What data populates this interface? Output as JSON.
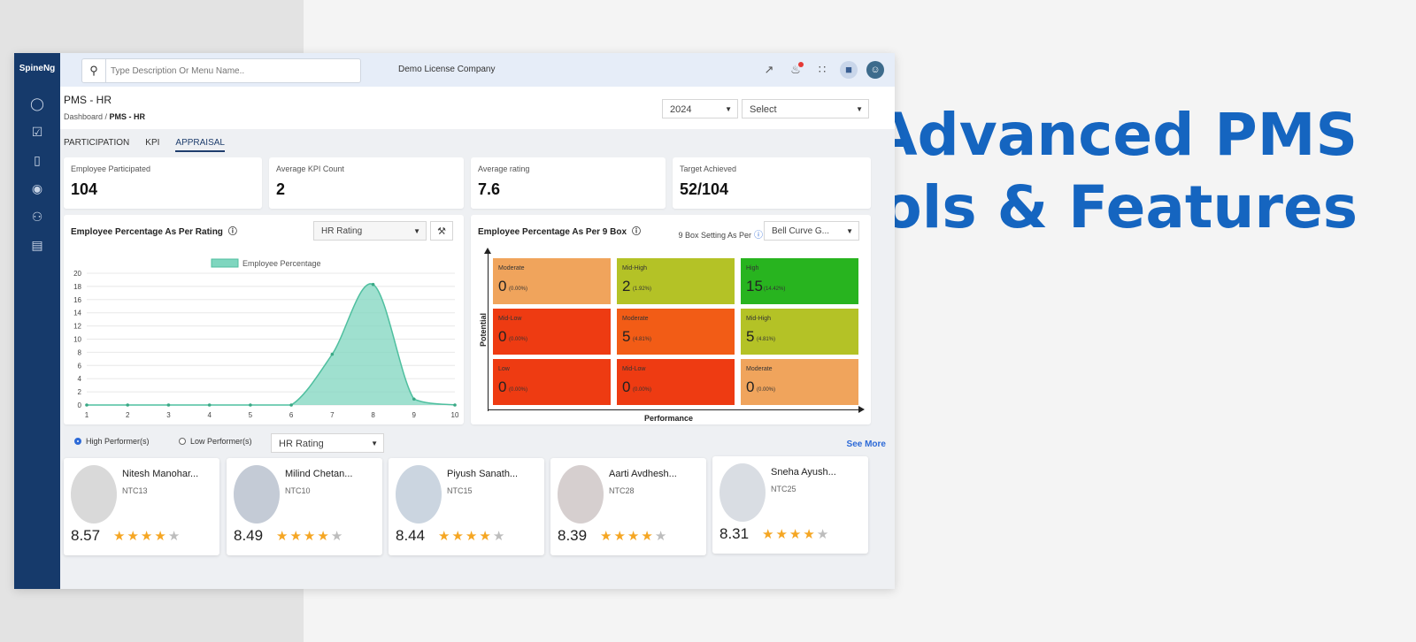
{
  "hero": {
    "line1": "Advanced PMS",
    "line2": "Tools & Features"
  },
  "app": {
    "brand": "SpineNg"
  },
  "topbar": {
    "search_placeholder": "Type Description Or Menu Name..",
    "company": "Demo License Company"
  },
  "page": {
    "title": "PMS - HR",
    "breadcrumb_root": "Dashboard /",
    "breadcrumb_current": "PMS - HR",
    "year_value": "2024",
    "select_value": "Select"
  },
  "tabs": [
    "PARTICIPATION",
    "KPI",
    "APPRAISAL"
  ],
  "stats": [
    {
      "label": "Employee Participated",
      "value": "104"
    },
    {
      "label": "Average KPI Count",
      "value": "2"
    },
    {
      "label": "Average rating",
      "value": "7.6"
    },
    {
      "label": "Target Achieved",
      "value": "52/104"
    }
  ],
  "rating_panel": {
    "title": "Employee Percentage As Per Rating",
    "dropdown": "HR Rating"
  },
  "chart_data": {
    "type": "area",
    "legend": [
      "Employee Percentage"
    ],
    "x": [
      1,
      2,
      3,
      4,
      5,
      6,
      7,
      8,
      9,
      10
    ],
    "series": [
      {
        "name": "Employee Percentage",
        "values": [
          0,
          0,
          0,
          0,
          0,
          0,
          7.7,
          18.3,
          0.9,
          0
        ]
      }
    ],
    "ylim": [
      0,
      20
    ],
    "yticks": [
      0,
      2,
      4,
      6,
      8,
      10,
      12,
      14,
      16,
      18,
      20
    ],
    "xticks": [
      1,
      2,
      3,
      4,
      5,
      6,
      7,
      8,
      9,
      10
    ],
    "grid": true,
    "legend_position": "top-center",
    "color": "#7fd6bf"
  },
  "nine_box": {
    "title": "Employee Percentage As Per 9 Box",
    "setting_label": "9 Box Setting As Per",
    "setting_value": "Bell Curve G...",
    "x_label": "Performance",
    "y_label": "Potential",
    "cells": [
      {
        "label": "Moderate",
        "count": "0",
        "pct": "(0.00%)",
        "color": "#f0a45c"
      },
      {
        "label": "Mid-High",
        "count": "2",
        "pct": "(1.92%)",
        "color": "#b4c226"
      },
      {
        "label": "High",
        "count": "15",
        "pct": "(14.42%)",
        "color": "#28b41f"
      },
      {
        "label": "Mid-Low",
        "count": "0",
        "pct": "(0.00%)",
        "color": "#ee3b12"
      },
      {
        "label": "Moderate",
        "count": "5",
        "pct": "(4.81%)",
        "color": "#f25c16"
      },
      {
        "label": "Mid-High",
        "count": "5",
        "pct": "(4.81%)",
        "color": "#b4c226"
      },
      {
        "label": "Low",
        "count": "0",
        "pct": "(0.00%)",
        "color": "#ee3b12"
      },
      {
        "label": "Mid-Low",
        "count": "0",
        "pct": "(0.00%)",
        "color": "#ee3b12"
      },
      {
        "label": "Moderate",
        "count": "0",
        "pct": "(0.00%)",
        "color": "#f0a45c"
      }
    ]
  },
  "filters": {
    "high": "High Performer(s)",
    "low": "Low Performer(s)",
    "rating": "HR Rating",
    "see_more": "See More"
  },
  "performers": [
    {
      "name": "Nitesh Manohar...",
      "code": "NTC13",
      "score": "8.57",
      "stars": 4
    },
    {
      "name": "Milind Chetan...",
      "code": "NTC10",
      "score": "8.49",
      "stars": 4
    },
    {
      "name": "Piyush Sanath...",
      "code": "NTC15",
      "score": "8.44",
      "stars": 4
    },
    {
      "name": "Aarti Avdhesh...",
      "code": "NTC28",
      "score": "8.39",
      "stars": 4
    },
    {
      "name": "Sneha Ayush...",
      "code": "NTC25",
      "score": "8.31",
      "stars": 4
    }
  ]
}
